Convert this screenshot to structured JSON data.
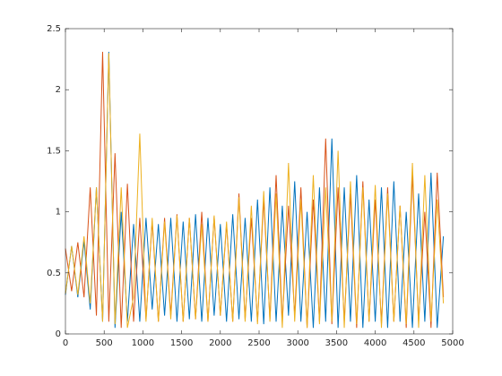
{
  "chart_data": {
    "type": "line",
    "x": [
      0,
      80,
      160,
      240,
      320,
      400,
      480,
      560,
      640,
      720,
      800,
      880,
      960,
      1040,
      1120,
      1200,
      1280,
      1360,
      1440,
      1520,
      1600,
      1680,
      1760,
      1840,
      1920,
      2000,
      2080,
      2160,
      2240,
      2320,
      2400,
      2480,
      2560,
      2640,
      2720,
      2800,
      2880,
      2960,
      3040,
      3120,
      3200,
      3280,
      3360,
      3440,
      3520,
      3600,
      3680,
      3760,
      3840,
      3920,
      4000,
      4080,
      4160,
      4240,
      4320,
      4400,
      4480,
      4560,
      4640,
      4720,
      4800,
      4880
    ],
    "series": [
      {
        "color": "#0072bd",
        "values": [
          0.32,
          0.72,
          0.3,
          0.76,
          0.2,
          1.2,
          0.1,
          2.31,
          0.05,
          1.0,
          0.1,
          0.9,
          0.1,
          0.95,
          0.2,
          0.9,
          0.15,
          0.95,
          0.1,
          0.92,
          0.12,
          0.98,
          0.1,
          0.95,
          0.15,
          0.9,
          0.1,
          0.98,
          0.12,
          0.95,
          0.1,
          1.1,
          0.08,
          1.2,
          0.1,
          1.05,
          0.15,
          1.25,
          0.1,
          1.0,
          0.05,
          1.2,
          0.1,
          1.6,
          0.05,
          1.2,
          0.1,
          1.3,
          0.05,
          1.1,
          0.1,
          1.2,
          0.05,
          1.25,
          0.1,
          1.0,
          0.05,
          1.15,
          0.1,
          1.32,
          0.05,
          0.8
        ]
      },
      {
        "color": "#d95319",
        "values": [
          0.7,
          0.35,
          0.75,
          0.3,
          1.2,
          0.15,
          2.31,
          0.1,
          1.48,
          0.05,
          1.23,
          0.1,
          0.95,
          0.12,
          0.92,
          0.1,
          0.95,
          0.15,
          0.98,
          0.1,
          0.95,
          0.12,
          1.0,
          0.1,
          0.96,
          0.15,
          0.9,
          0.1,
          1.15,
          0.12,
          0.95,
          0.1,
          1.1,
          0.12,
          1.3,
          0.1,
          1.05,
          0.15,
          1.2,
          0.05,
          1.1,
          0.1,
          1.6,
          0.08,
          1.2,
          0.1,
          1.15,
          0.05,
          1.25,
          0.1,
          1.1,
          0.08,
          1.2,
          0.1,
          1.05,
          0.05,
          1.3,
          0.1,
          1.0,
          0.05,
          1.32,
          0.3
        ]
      },
      {
        "color": "#edb120",
        "values": [
          0.33,
          0.72,
          0.32,
          0.8,
          0.25,
          1.2,
          0.1,
          2.3,
          0.08,
          1.2,
          0.05,
          0.3,
          1.64,
          0.1,
          0.95,
          0.1,
          0.92,
          0.12,
          0.97,
          0.1,
          0.95,
          0.12,
          0.9,
          0.1,
          0.97,
          0.15,
          0.92,
          0.1,
          1.12,
          0.1,
          1.05,
          0.08,
          1.17,
          0.1,
          1.15,
          0.05,
          1.4,
          0.1,
          1.1,
          0.05,
          1.3,
          0.08,
          1.2,
          0.1,
          1.5,
          0.05,
          1.25,
          0.08,
          1.2,
          0.1,
          1.22,
          0.05,
          1.15,
          0.1,
          1.05,
          0.08,
          1.4,
          0.05,
          1.3,
          0.1,
          1.1,
          0.25
        ]
      }
    ],
    "xlim": [
      0,
      5000
    ],
    "xticks": [
      0,
      500,
      1000,
      1500,
      2000,
      2500,
      3000,
      3500,
      4000,
      4500,
      5000
    ],
    "ylim": [
      0,
      2.5
    ],
    "yticks": [
      0,
      0.5,
      1,
      1.5,
      2,
      2.5
    ],
    "grid": false
  }
}
